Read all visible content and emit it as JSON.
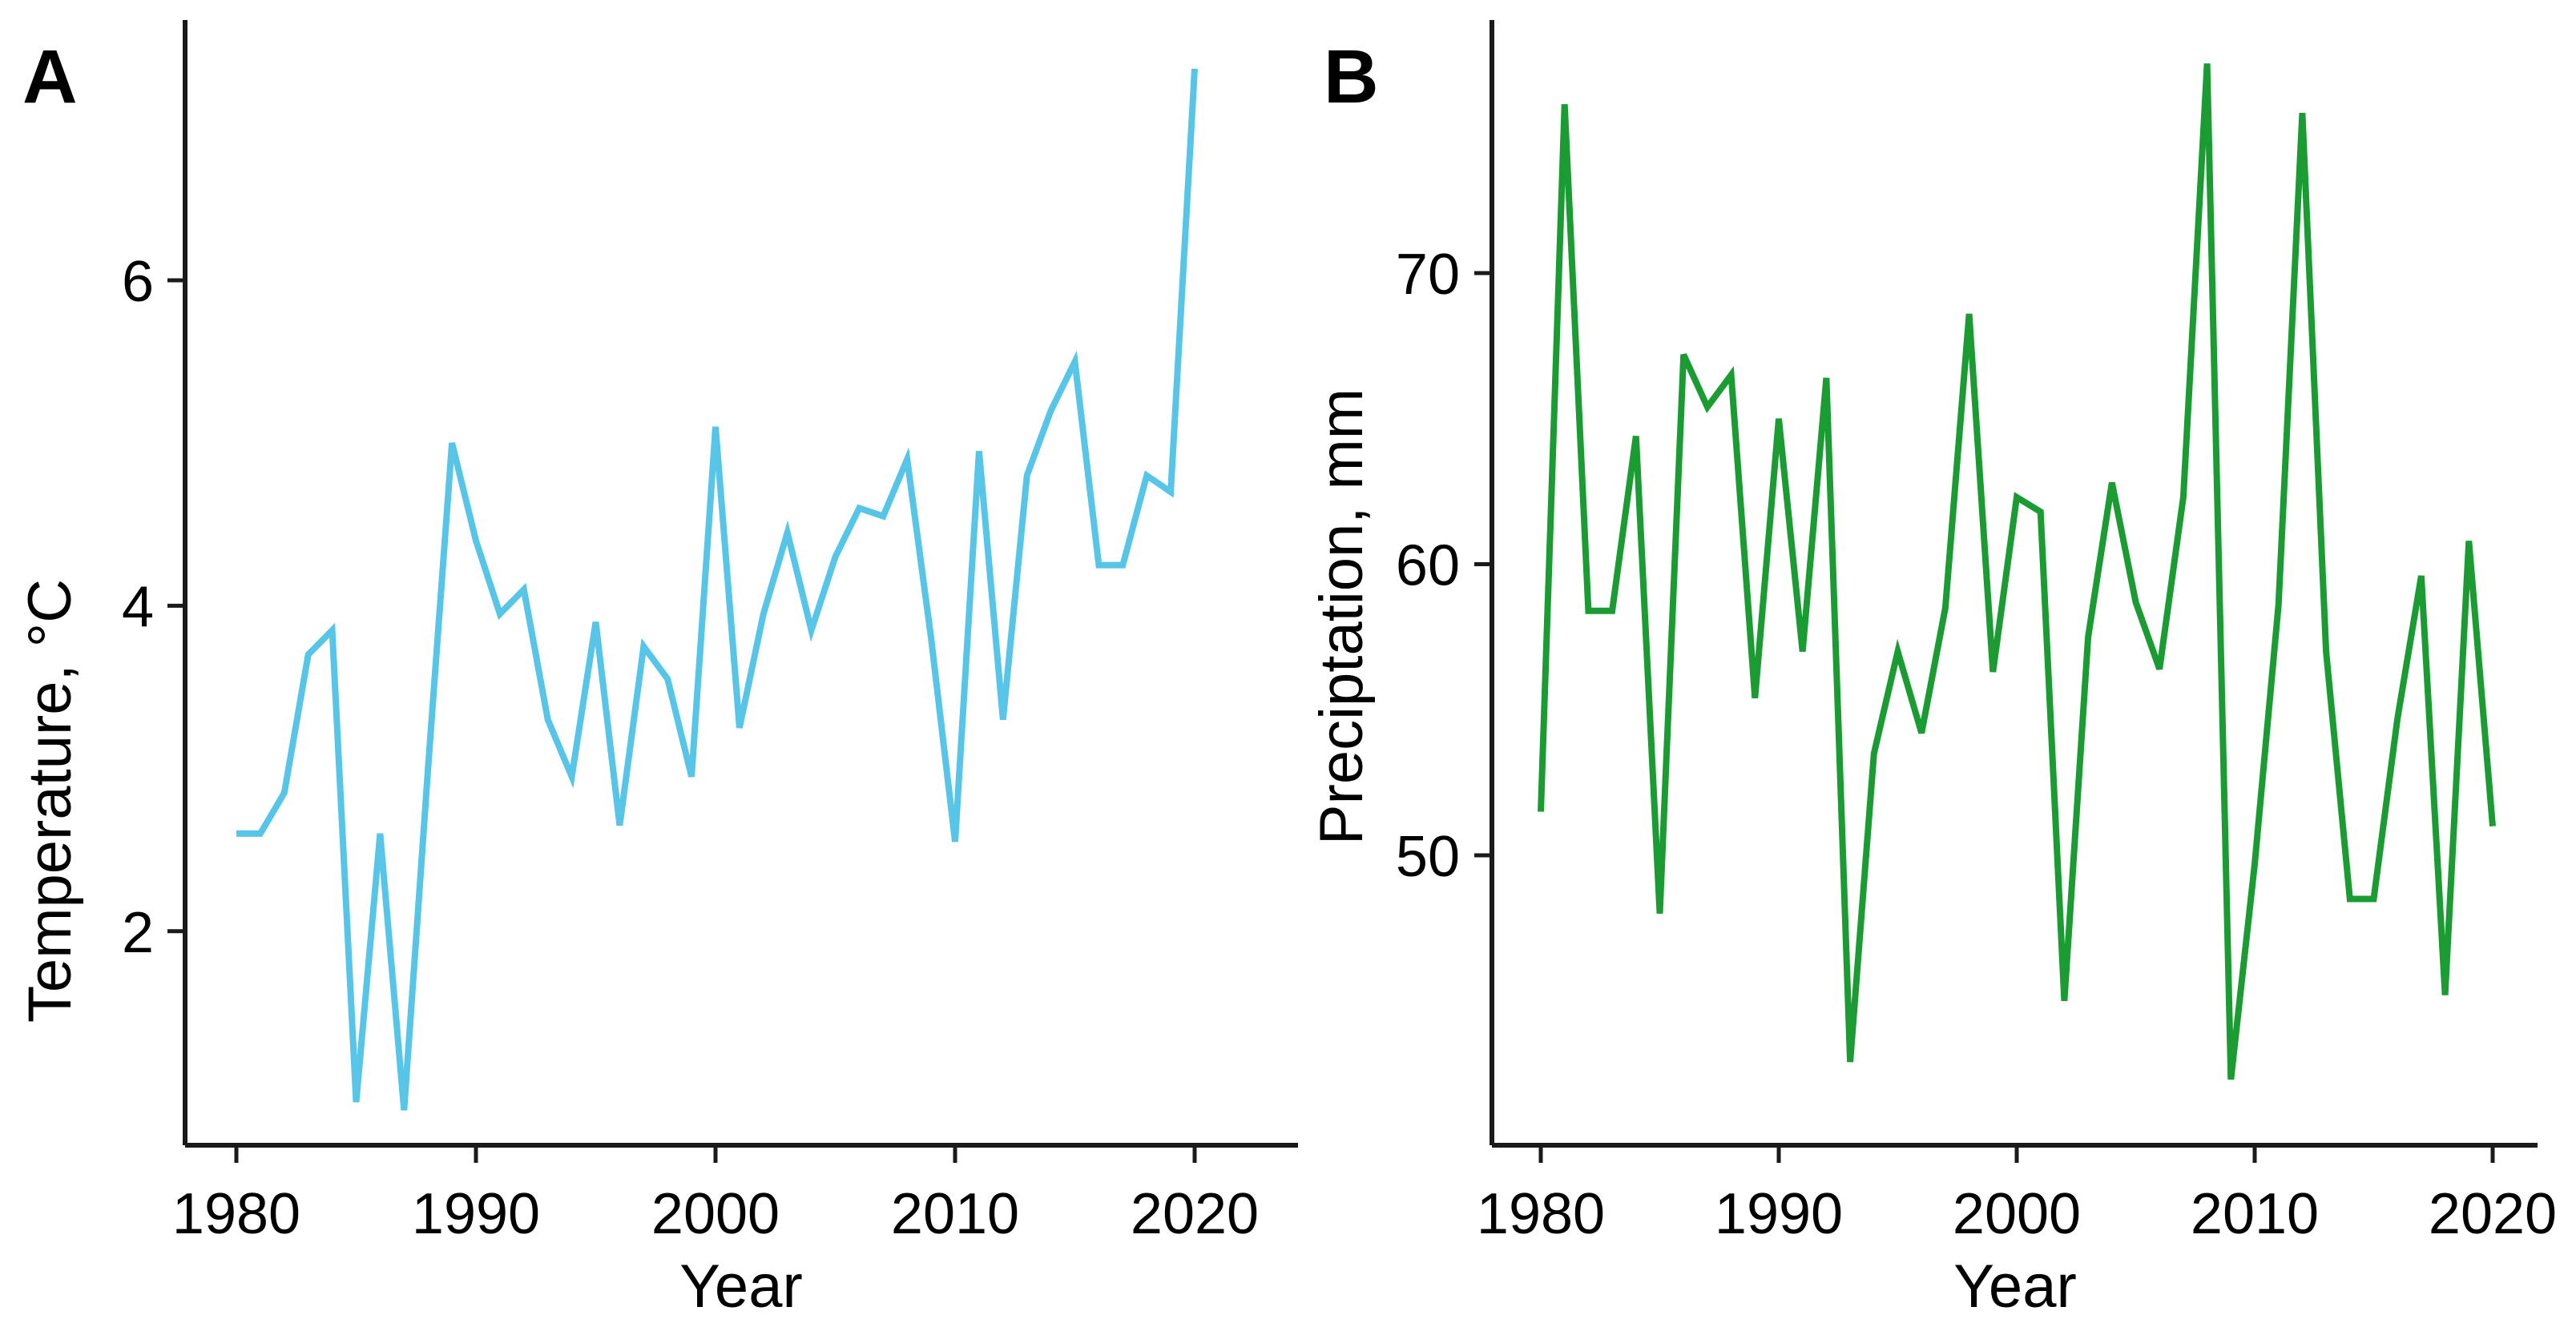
{
  "figure": {
    "background": "#ffffff",
    "axis_color": "#1a1a1a",
    "panels": [
      {
        "label": "A",
        "y_title": "Temperature, °C",
        "x_title": "Year",
        "line_color": "#56C5E8"
      },
      {
        "label": "B",
        "y_title": "Preciptation, mm",
        "x_title": "Year",
        "line_color": "#1A9C33"
      }
    ]
  },
  "chart_data": [
    {
      "type": "line",
      "panel": "A",
      "title": "",
      "xlabel": "Year",
      "ylabel": "Temperature, °C",
      "line_color": "#56C5E8",
      "x_tick_values": [
        1980,
        1990,
        2000,
        2010,
        2020
      ],
      "x_tick_labels": [
        "1980",
        "1990",
        "2000",
        "2010",
        "2020"
      ],
      "y_tick_values": [
        2,
        4,
        6
      ],
      "y_tick_labels": [
        "2",
        "4",
        "6"
      ],
      "xlim": [
        1977.8,
        2023
      ],
      "ylim": [
        0.66,
        7.6
      ],
      "grid": false,
      "legend": "none",
      "x": [
        1980,
        1981,
        1982,
        1983,
        1984,
        1985,
        1986,
        1987,
        1988,
        1989,
        1990,
        1991,
        1992,
        1993,
        1994,
        1995,
        1996,
        1997,
        1998,
        1999,
        2000,
        2001,
        2002,
        2003,
        2004,
        2005,
        2006,
        2007,
        2008,
        2009,
        2010,
        2011,
        2012,
        2013,
        2014,
        2015,
        2016,
        2017,
        2018,
        2019,
        2020
      ],
      "values": [
        2.6,
        2.6,
        2.85,
        3.7,
        3.85,
        0.95,
        2.6,
        0.9,
        3.0,
        5.0,
        4.4,
        3.95,
        4.1,
        3.3,
        2.95,
        3.9,
        2.65,
        3.75,
        3.55,
        2.95,
        5.1,
        3.25,
        3.95,
        4.45,
        3.85,
        4.3,
        4.6,
        4.55,
        4.9,
        3.8,
        2.55,
        4.95,
        3.3,
        4.8,
        5.2,
        5.5,
        4.25,
        4.25,
        4.8,
        4.7,
        7.3
      ]
    },
    {
      "type": "line",
      "panel": "B",
      "title": "",
      "xlabel": "Year",
      "ylabel": "Preciptation, mm",
      "line_color": "#1A9C33",
      "x_tick_values": [
        1980,
        1990,
        2000,
        2010,
        2020
      ],
      "x_tick_labels": [
        "1980",
        "1990",
        "2000",
        "2010",
        "2020"
      ],
      "y_tick_values": [
        50,
        60,
        70
      ],
      "y_tick_labels": [
        "50",
        "60",
        "70"
      ],
      "xlim": [
        1977.8,
        2023
      ],
      "ylim": [
        40,
        78.5
      ],
      "grid": false,
      "legend": "none",
      "x": [
        1980,
        1981,
        1982,
        1983,
        1984,
        1985,
        1986,
        1987,
        1988,
        1989,
        1990,
        1991,
        1992,
        1993,
        1994,
        1995,
        1996,
        1997,
        1998,
        1999,
        2000,
        2001,
        2002,
        2003,
        2004,
        2005,
        2006,
        2007,
        2008,
        2009,
        2010,
        2011,
        2012,
        2013,
        2014,
        2015,
        2016,
        2017,
        2018,
        2019,
        2020
      ],
      "values": [
        51.5,
        75.8,
        58.4,
        58.4,
        64.4,
        48.0,
        67.2,
        65.4,
        66.5,
        55.4,
        65.0,
        57.0,
        66.4,
        42.9,
        53.5,
        57.0,
        54.2,
        58.5,
        68.6,
        56.3,
        62.3,
        61.8,
        45.0,
        57.5,
        62.8,
        58.7,
        56.4,
        62.3,
        77.2,
        42.3,
        49.7,
        58.6,
        75.5,
        57.0,
        48.5,
        48.5,
        54.7,
        59.6,
        45.2,
        60.8,
        51.0
      ]
    }
  ]
}
